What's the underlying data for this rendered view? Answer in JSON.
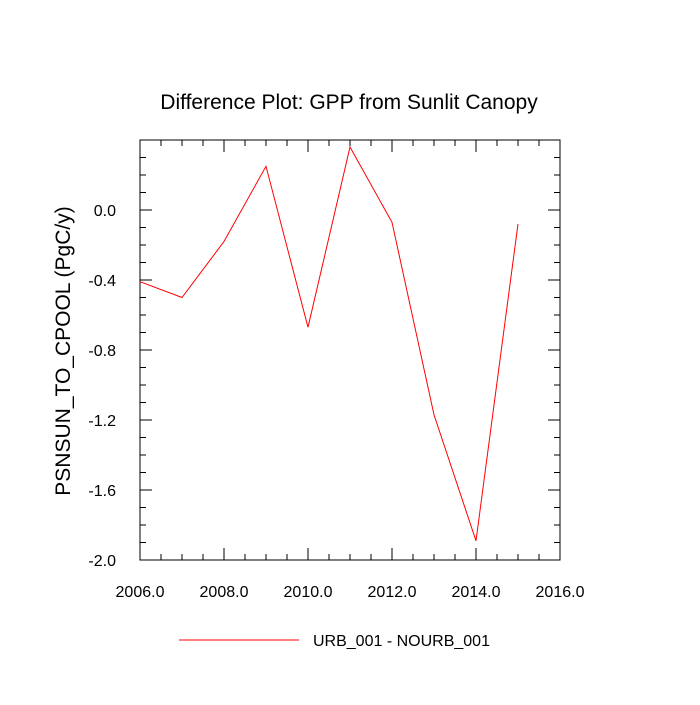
{
  "chart_data": {
    "type": "line",
    "title": "Difference Plot: GPP from Sunlit Canopy",
    "xlabel": "",
    "ylabel": "PSNSUN_TO_CPOOL  (PgC/y)",
    "xlim": [
      2006,
      2016
    ],
    "ylim": [
      -2.0,
      0.4
    ],
    "x_ticks": [
      2006,
      2008,
      2010,
      2012,
      2014,
      2016
    ],
    "x_tick_labels": [
      "2006.0",
      "2008.0",
      "2010.0",
      "2012.0",
      "2014.0",
      "2016.0"
    ],
    "y_ticks": [
      -2.0,
      -1.6,
      -1.2,
      -0.8,
      -0.4,
      0.0
    ],
    "y_tick_labels": [
      "-2.0",
      "-1.6",
      "-1.2",
      "-0.8",
      "-0.4",
      "0.0"
    ],
    "grid": false,
    "legend_position": "bottom-center",
    "series": [
      {
        "name": "URB_001 - NOURB_001",
        "color": "#ff0000",
        "x": [
          2006,
          2007,
          2008,
          2009,
          2010,
          2011,
          2012,
          2013,
          2014,
          2015
        ],
        "y": [
          -0.41,
          -0.5,
          -0.18,
          0.25,
          -0.67,
          0.36,
          -0.07,
          -1.17,
          -1.89,
          -0.08
        ]
      }
    ]
  }
}
